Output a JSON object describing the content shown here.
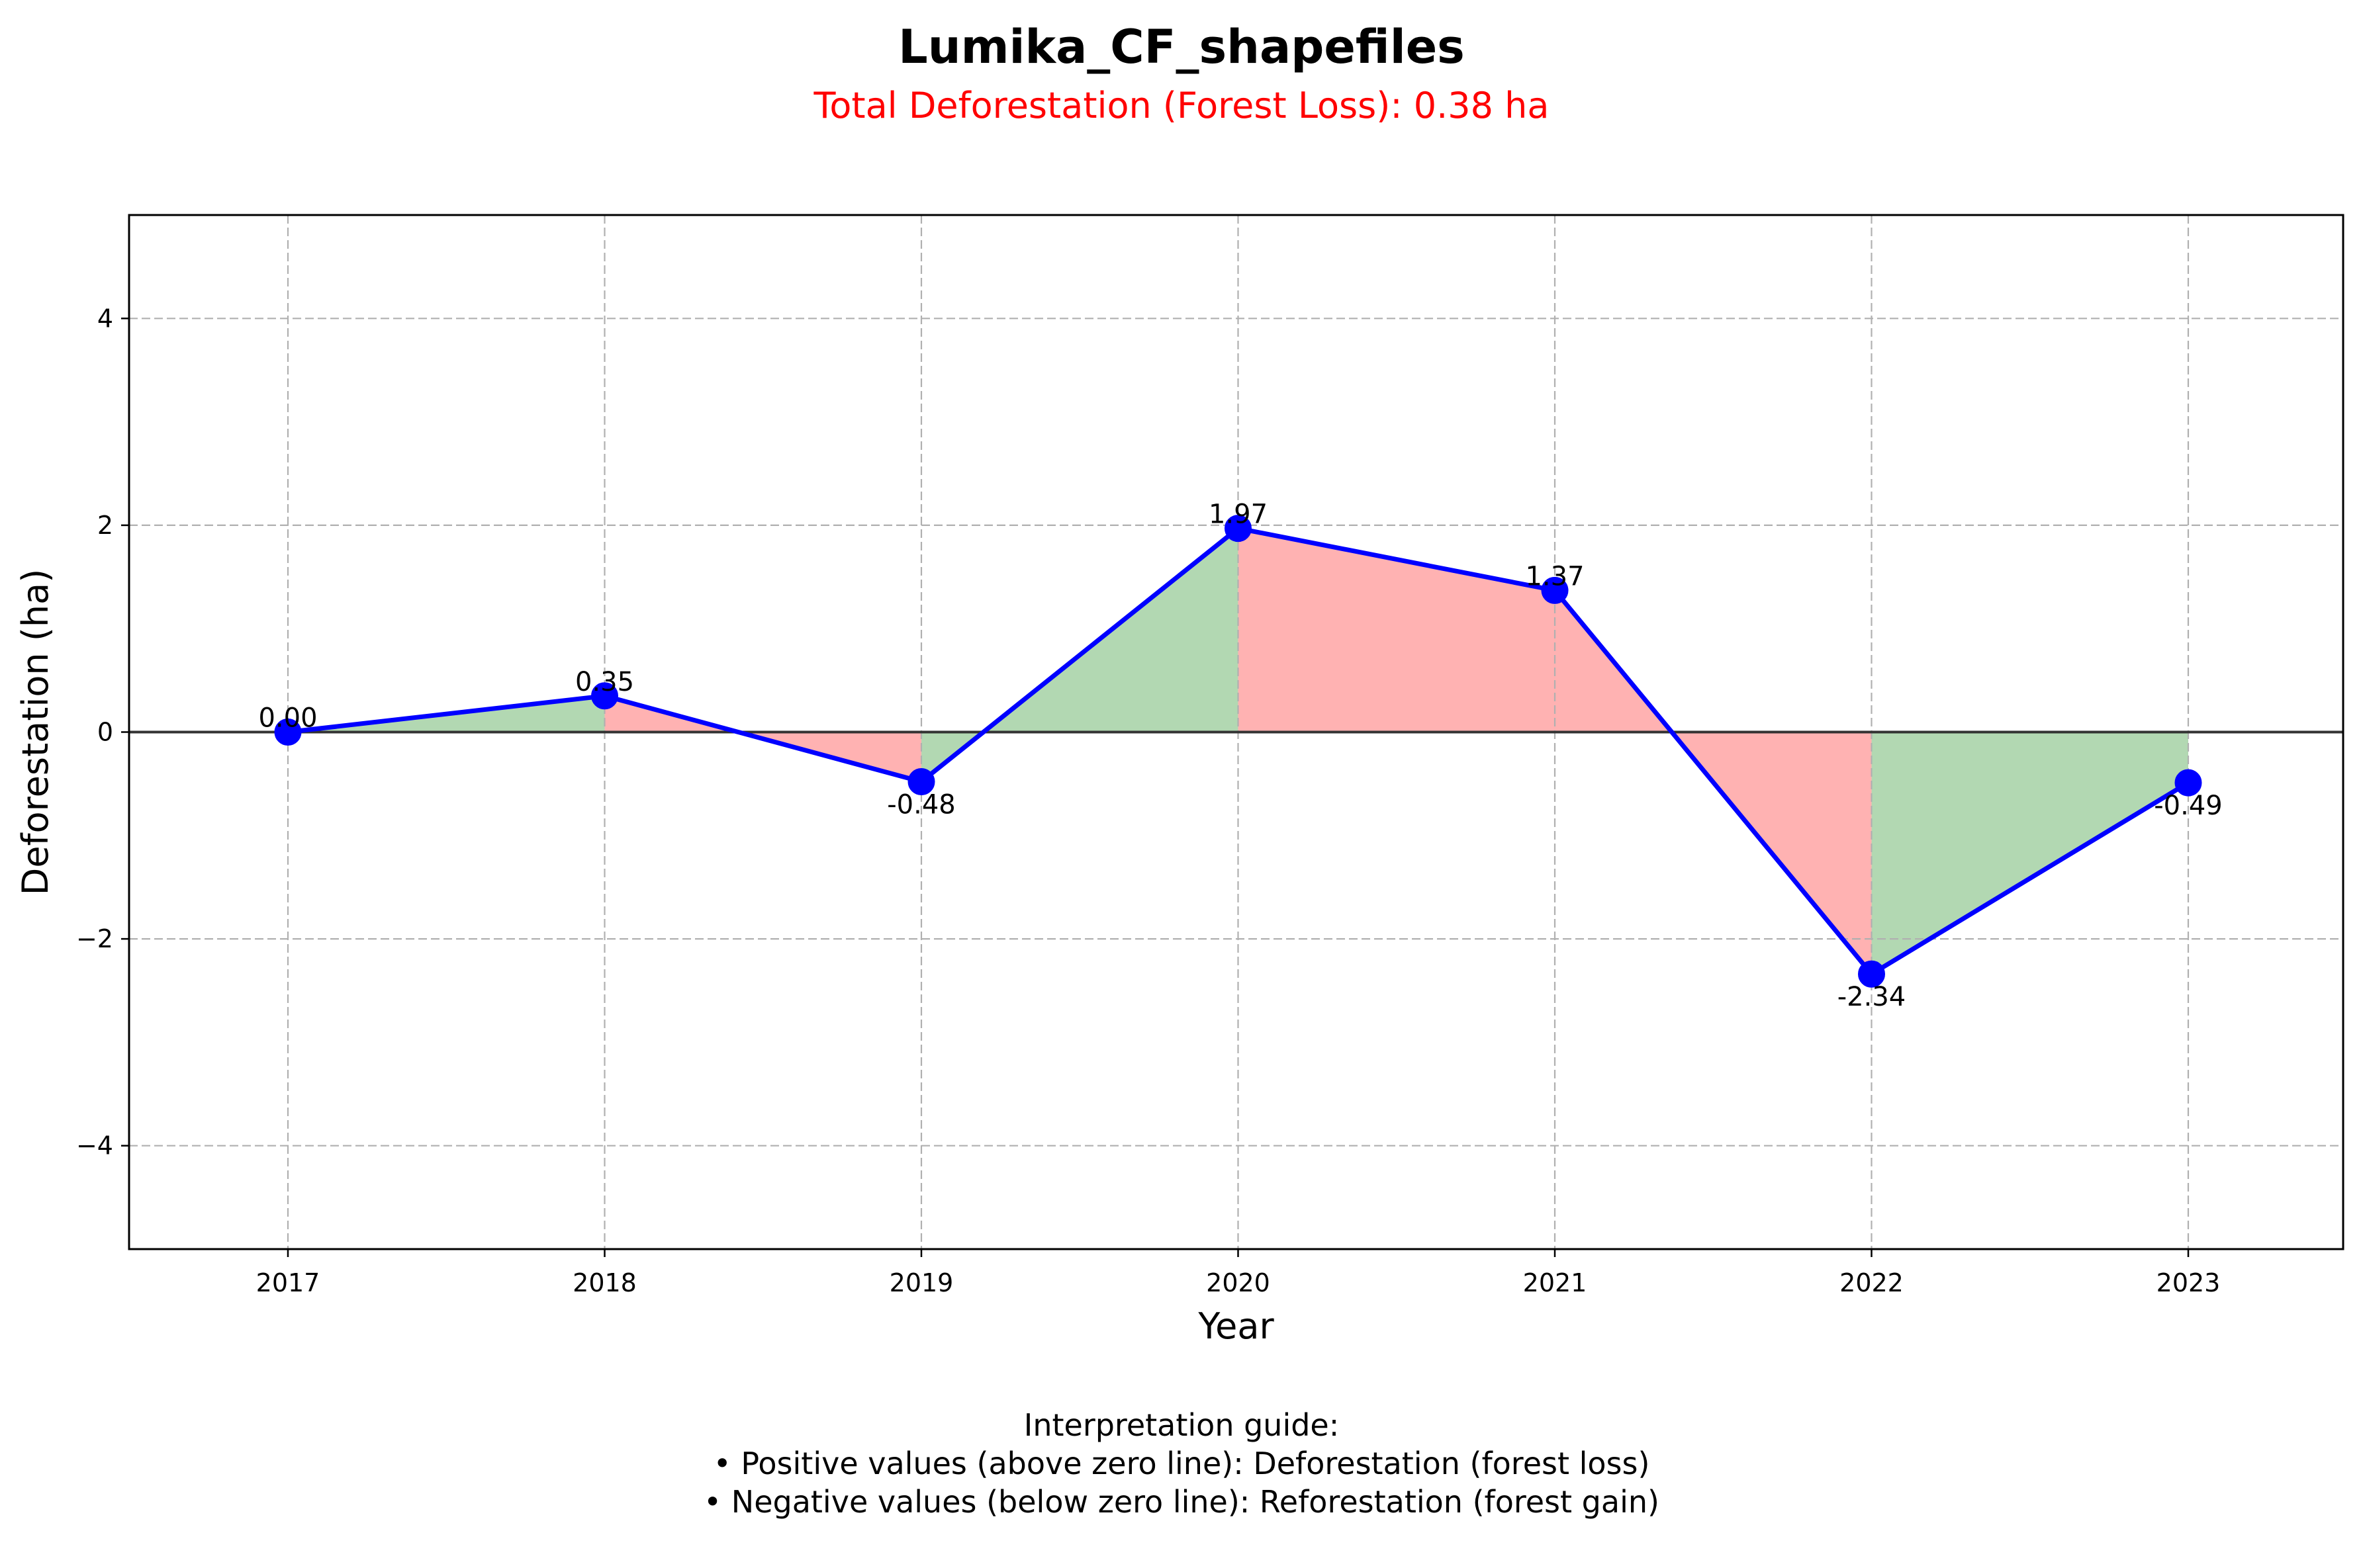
{
  "chart_data": {
    "type": "line",
    "title": "Lumika_CF_shapefiles",
    "subtitle": "Total Deforestation (Forest Loss): 0.38 ha",
    "xlabel": "Year",
    "ylabel": "Deforestation (ha)",
    "x": [
      "2017",
      "2018",
      "2019",
      "2020",
      "2021",
      "2022",
      "2023"
    ],
    "series": [
      {
        "values": [
          0.0,
          0.35,
          -0.48,
          1.97,
          1.37,
          -2.34,
          -0.49
        ]
      }
    ],
    "data_labels": [
      "0.00",
      "0.35",
      "-0.48",
      "1.97",
      "1.37",
      "-2.34",
      "-0.49"
    ],
    "ylim": [
      -5,
      5
    ],
    "yticks": [
      -4,
      -2,
      0,
      2,
      4
    ],
    "ytick_labels": [
      "−4",
      "−2",
      "0",
      "2",
      "4"
    ],
    "grid": true,
    "fill_colors": {
      "increase": "#b2d8b2",
      "decrease": "#ffb2b2"
    },
    "line_color": "#0000ff",
    "marker_color": "#0000ff"
  },
  "guide": {
    "heading": "Interpretation guide:",
    "lines": [
      "• Positive values (above zero line): Deforestation (forest loss)",
      "• Negative values (below zero line): Reforestation (forest gain)"
    ]
  }
}
